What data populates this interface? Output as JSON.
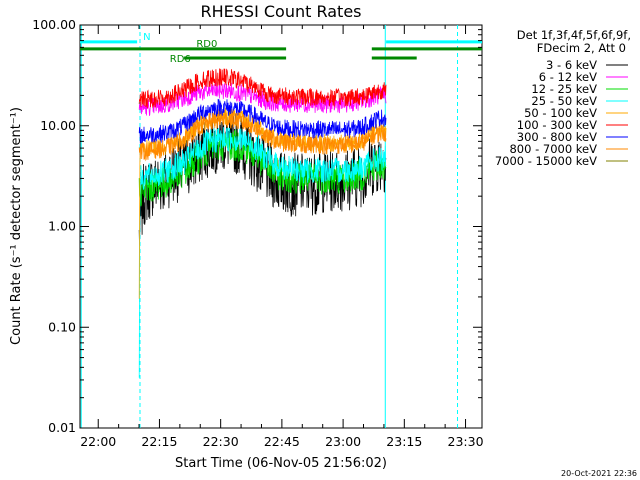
{
  "chart_data": {
    "type": "line",
    "title": "RHESSI Count Rates",
    "xlabel": "Start Time (06-Nov-05 21:56:02)",
    "ylabel": "Count Rate (s⁻¹ detector segment⁻¹)",
    "x_unit": "minutes after 21:56:02",
    "xlim": [
      -0.5,
      98
    ],
    "ylim": [
      0.01,
      100
    ],
    "y_scale": "log",
    "x_tick_labels": [
      "22:00",
      "22:15",
      "22:30",
      "22:45",
      "23:00",
      "23:15",
      "23:30"
    ],
    "y_tick_labels": [
      "0.01",
      "0.10",
      "1.00",
      "10.00",
      "100.00"
    ],
    "legend_title": [
      "Det 1f,3f,4f,5f,6f,9f,",
      "FDecim 2, Att 0"
    ],
    "legend_position": "right",
    "series": [
      {
        "name": "3 - 6 keV",
        "color": "#000000",
        "points": [
          [
            14.0,
            0.8
          ],
          [
            15,
            2.0
          ],
          [
            17,
            2.5
          ],
          [
            20,
            2.8
          ],
          [
            22,
            3.4
          ],
          [
            25,
            3.8
          ],
          [
            28,
            4.8
          ],
          [
            30,
            6.0
          ],
          [
            33,
            7.0
          ],
          [
            36,
            7.2
          ],
          [
            39,
            6.5
          ],
          [
            42,
            5.0
          ],
          [
            45,
            3.6
          ],
          [
            48,
            2.8
          ],
          [
            51,
            2.6
          ],
          [
            54,
            2.6
          ],
          [
            57,
            2.7
          ],
          [
            60,
            2.8
          ],
          [
            63,
            2.9
          ],
          [
            66,
            3.0
          ],
          [
            69,
            3.3
          ],
          [
            71,
            4.0
          ],
          [
            73,
            4.5
          ],
          [
            74.5,
            4.5
          ]
        ]
      },
      {
        "name": "6 - 12 keV",
        "color": "#ff00ff",
        "points": [
          [
            14.0,
            15.0
          ],
          [
            17,
            15.5
          ],
          [
            20,
            16.0
          ],
          [
            22,
            17.0
          ],
          [
            25,
            18.5
          ],
          [
            28,
            21.0
          ],
          [
            31,
            22.0
          ],
          [
            34,
            22.5
          ],
          [
            37,
            22.0
          ],
          [
            40,
            20.5
          ],
          [
            43,
            19.0
          ],
          [
            45,
            17.5
          ],
          [
            48,
            16.8
          ],
          [
            51,
            16.5
          ],
          [
            54,
            16.5
          ],
          [
            57,
            16.5
          ],
          [
            60,
            16.3
          ],
          [
            63,
            16.4
          ],
          [
            66,
            16.8
          ],
          [
            69,
            17.5
          ],
          [
            71,
            19.0
          ],
          [
            73,
            20.0
          ],
          [
            74.5,
            20.0
          ]
        ]
      },
      {
        "name": "12 - 25 keV",
        "color": "#00dd00",
        "points": [
          [
            14.0,
            2.2
          ],
          [
            17,
            2.5
          ],
          [
            20,
            2.7
          ],
          [
            22,
            3.0
          ],
          [
            25,
            3.5
          ],
          [
            28,
            4.6
          ],
          [
            31,
            5.8
          ],
          [
            34,
            6.4
          ],
          [
            37,
            6.5
          ],
          [
            40,
            6.0
          ],
          [
            43,
            5.0
          ],
          [
            45,
            4.0
          ],
          [
            48,
            3.3
          ],
          [
            51,
            3.1
          ],
          [
            54,
            3.0
          ],
          [
            57,
            3.0
          ],
          [
            60,
            3.0
          ],
          [
            63,
            3.0
          ],
          [
            66,
            3.1
          ],
          [
            69,
            3.3
          ],
          [
            71,
            3.8
          ],
          [
            73,
            4.1
          ],
          [
            74.5,
            4.1
          ]
        ]
      },
      {
        "name": "25 - 50 keV",
        "color": "#00ffff",
        "points": [
          [
            14.0,
            0.04
          ],
          [
            14.2,
            3.0
          ],
          [
            17,
            3.2
          ],
          [
            20,
            3.4
          ],
          [
            22,
            3.8
          ],
          [
            25,
            4.3
          ],
          [
            28,
            5.6
          ],
          [
            31,
            6.8
          ],
          [
            34,
            7.4
          ],
          [
            37,
            7.5
          ],
          [
            40,
            7.0
          ],
          [
            43,
            6.0
          ],
          [
            45,
            4.8
          ],
          [
            48,
            4.0
          ],
          [
            51,
            3.7
          ],
          [
            54,
            3.6
          ],
          [
            57,
            3.6
          ],
          [
            60,
            3.6
          ],
          [
            63,
            3.6
          ],
          [
            66,
            3.7
          ],
          [
            69,
            3.9
          ],
          [
            71,
            4.4
          ],
          [
            73,
            4.7
          ],
          [
            74.5,
            4.7
          ]
        ]
      },
      {
        "name": "50 - 100 keV",
        "color": "#ffaa00",
        "points": [
          [
            14.0,
            0.16
          ],
          [
            14.2,
            5.8
          ],
          [
            17,
            6.0
          ],
          [
            20,
            6.2
          ],
          [
            22,
            6.6
          ],
          [
            25,
            7.5
          ],
          [
            28,
            9.8
          ],
          [
            31,
            11.5
          ],
          [
            34,
            12.4
          ],
          [
            37,
            12.3
          ],
          [
            40,
            11.3
          ],
          [
            43,
            9.8
          ],
          [
            45,
            8.2
          ],
          [
            48,
            7.2
          ],
          [
            51,
            6.9
          ],
          [
            54,
            6.8
          ],
          [
            57,
            6.8
          ],
          [
            60,
            6.7
          ],
          [
            63,
            6.7
          ],
          [
            66,
            6.8
          ],
          [
            69,
            7.2
          ],
          [
            71,
            8.2
          ],
          [
            73,
            9.0
          ],
          [
            74.5,
            9.0
          ]
        ]
      },
      {
        "name": "100 - 300 keV",
        "color": "#ff0000",
        "points": [
          [
            14.0,
            18.0
          ],
          [
            17,
            18.5
          ],
          [
            20,
            19.0
          ],
          [
            22,
            20.0
          ],
          [
            25,
            22.5
          ],
          [
            28,
            27.0
          ],
          [
            31,
            29.5
          ],
          [
            34,
            30.5
          ],
          [
            37,
            29.5
          ],
          [
            40,
            27.0
          ],
          [
            43,
            24.0
          ],
          [
            45,
            21.0
          ],
          [
            48,
            19.8
          ],
          [
            51,
            19.5
          ],
          [
            54,
            19.3
          ],
          [
            57,
            19.2
          ],
          [
            60,
            19.0
          ],
          [
            63,
            19.0
          ],
          [
            66,
            19.2
          ],
          [
            69,
            19.8
          ],
          [
            71,
            21.5
          ],
          [
            73,
            22.5
          ],
          [
            74.5,
            22.0
          ]
        ]
      },
      {
        "name": "300 - 800 keV",
        "color": "#0000ff",
        "points": [
          [
            14.0,
            8.0
          ],
          [
            17,
            8.2
          ],
          [
            20,
            8.4
          ],
          [
            22,
            8.8
          ],
          [
            25,
            10.0
          ],
          [
            28,
            12.6
          ],
          [
            31,
            14.5
          ],
          [
            34,
            15.3
          ],
          [
            37,
            15.0
          ],
          [
            40,
            14.0
          ],
          [
            43,
            12.2
          ],
          [
            45,
            10.6
          ],
          [
            48,
            9.6
          ],
          [
            51,
            9.3
          ],
          [
            54,
            9.2
          ],
          [
            57,
            9.2
          ],
          [
            60,
            9.1
          ],
          [
            63,
            9.1
          ],
          [
            66,
            9.2
          ],
          [
            69,
            9.8
          ],
          [
            71,
            11.0
          ],
          [
            73,
            12.0
          ],
          [
            74.5,
            12.0
          ]
        ]
      },
      {
        "name": "800 - 7000 keV",
        "color": "#ff8800",
        "points": [
          [
            14.0,
            5.5
          ],
          [
            17,
            5.7
          ],
          [
            20,
            5.9
          ],
          [
            22,
            6.3
          ],
          [
            25,
            7.2
          ],
          [
            28,
            9.3
          ],
          [
            31,
            10.8
          ],
          [
            34,
            11.6
          ],
          [
            37,
            11.5
          ],
          [
            40,
            10.6
          ],
          [
            43,
            9.2
          ],
          [
            45,
            7.8
          ],
          [
            48,
            6.9
          ],
          [
            51,
            6.6
          ],
          [
            54,
            6.5
          ],
          [
            57,
            6.5
          ],
          [
            60,
            6.4
          ],
          [
            63,
            6.4
          ],
          [
            66,
            6.5
          ],
          [
            69,
            6.9
          ],
          [
            71,
            7.8
          ],
          [
            73,
            8.5
          ],
          [
            74.5,
            8.5
          ]
        ]
      },
      {
        "name": "7000 - 15000 keV",
        "color": "#808000",
        "points": []
      }
    ],
    "annotations": [
      {
        "label": "N",
        "color": "#00ffff",
        "y": 68,
        "segments": [
          [
            -0.5,
            13.5
          ],
          [
            74.5,
            98
          ]
        ]
      },
      {
        "label": "RD0",
        "color": "#008800",
        "y": 58,
        "segments": [
          [
            -0.5,
            50
          ],
          [
            71,
            98
          ]
        ]
      },
      {
        "label": "RD6",
        "color": "#008800",
        "y": 47,
        "segments": [
          [
            25,
            50
          ],
          [
            71,
            82
          ]
        ]
      }
    ],
    "vertical_lines": [
      {
        "x": 14.2,
        "style": "dashed",
        "color": "#00ffff"
      },
      {
        "x": 74.3,
        "style": "solid",
        "color": "#00ffff"
      },
      {
        "x": 92.0,
        "style": "dashed",
        "color": "#00ffff"
      },
      {
        "x": -0.2,
        "style": "solid",
        "color": "#00ffff"
      }
    ]
  },
  "footer_date": "20-Oct-2021 22:36"
}
